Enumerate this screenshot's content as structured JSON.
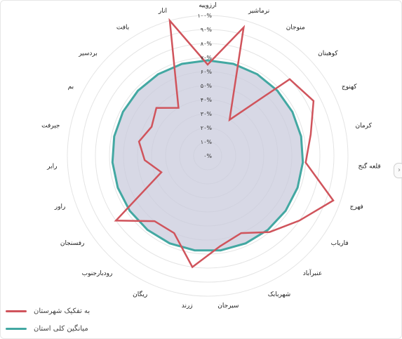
{
  "chart_data": {
    "type": "radar",
    "categories": [
      "ارزوییه",
      "نرماشیر",
      "منوجان",
      "کوهبنان",
      "کهنوج",
      "کرمان",
      "قلعه گنج",
      "فهرج",
      "فاریاب",
      "عنبرآباد",
      "شهربابک",
      "سیرجان",
      "زرند",
      "ریگان",
      "رودبارجنوب",
      "رفسنجان",
      "راور",
      "رابر",
      "جیرفت",
      "بم",
      "بردسیر",
      "بافت",
      "انار"
    ],
    "r_ticks": [
      "۰%",
      "۱۰%",
      "۲۰%",
      "۳۰%",
      "۴۰%",
      "۵۰%",
      "۶۰%",
      "۷۰%",
      "۸۰%",
      "۹۰%",
      "۱۰۰%"
    ],
    "r_range": [
      0,
      100
    ],
    "series": [
      {
        "name": "به تفکیک شهرستان",
        "color": "#d0545c",
        "values": [
          65,
          95,
          30,
          80,
          85,
          75,
          70,
          95,
          80,
          70,
          60,
          65,
          80,
          60,
          60,
          80,
          35,
          45,
          50,
          45,
          50,
          40,
          100
        ]
      },
      {
        "name": "میانگین کلی استان",
        "color": "#43a8a2",
        "fill": "#c9cbdc",
        "values": [
          68,
          68,
          68,
          68,
          68,
          68,
          68,
          68,
          68,
          68,
          68,
          68,
          68,
          68,
          68,
          68,
          68,
          68,
          68,
          68,
          68,
          68,
          68
        ]
      }
    ],
    "grid": true,
    "legend": "bottom-left"
  }
}
